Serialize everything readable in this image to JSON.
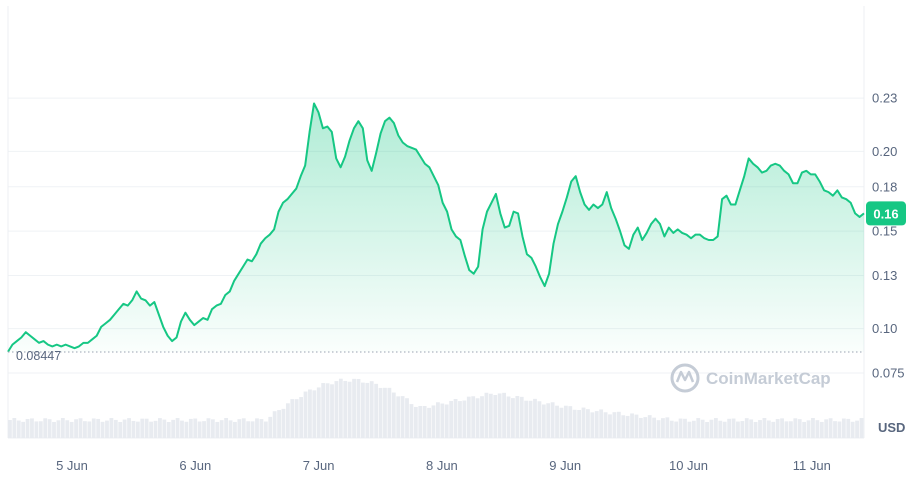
{
  "chart_data": {
    "type": "area",
    "currency_label": "USD",
    "watermark": "CoinMarketCap",
    "current_price_label": "0.16",
    "start_price_label": "0.08447",
    "x_tick_labels": [
      "5 Jun",
      "6 Jun",
      "7 Jun",
      "8 Jun",
      "9 Jun",
      "10 Jun",
      "11 Jun"
    ],
    "y_tick_labels": [
      "0.23",
      "0.20",
      "0.18",
      "0.15",
      "0.13",
      "0.10",
      "0.075"
    ],
    "y_tick_values": [
      0.23,
      0.2,
      0.18,
      0.155,
      0.13,
      0.1,
      0.075
    ],
    "ylim": [
      0.0705,
      0.2565
    ],
    "grid": true,
    "colors": {
      "line": "#16c784",
      "badge": "#16c784",
      "volume": "#e8ebf0",
      "grid": "#eff2f5",
      "text": "#58667e"
    },
    "series": [
      {
        "values": [
          0.087,
          0.091,
          0.093,
          0.095,
          0.098,
          0.096,
          0.094,
          0.092,
          0.093,
          0.091,
          0.09,
          0.091,
          0.09,
          0.091,
          0.09,
          0.089,
          0.09,
          0.092,
          0.092,
          0.094,
          0.096,
          0.101,
          0.103,
          0.105,
          0.108,
          0.111,
          0.114,
          0.113,
          0.116,
          0.121,
          0.117,
          0.116,
          0.113,
          0.115,
          0.108,
          0.101,
          0.096,
          0.093,
          0.095,
          0.104,
          0.109,
          0.105,
          0.102,
          0.104,
          0.106,
          0.105,
          0.111,
          0.113,
          0.114,
          0.119,
          0.121,
          0.127,
          0.131,
          0.135,
          0.139,
          0.138,
          0.142,
          0.148,
          0.151,
          0.153,
          0.156,
          0.166,
          0.171,
          0.173,
          0.176,
          0.179,
          0.186,
          0.192,
          0.211,
          0.227,
          0.222,
          0.213,
          0.214,
          0.211,
          0.196,
          0.191,
          0.197,
          0.206,
          0.213,
          0.217,
          0.213,
          0.195,
          0.189,
          0.199,
          0.21,
          0.217,
          0.219,
          0.216,
          0.209,
          0.205,
          0.203,
          0.202,
          0.201,
          0.197,
          0.193,
          0.191,
          0.186,
          0.181,
          0.171,
          0.166,
          0.156,
          0.152,
          0.15,
          0.141,
          0.133,
          0.131,
          0.135,
          0.156,
          0.166,
          0.171,
          0.176,
          0.165,
          0.157,
          0.158,
          0.166,
          0.165,
          0.152,
          0.142,
          0.14,
          0.135,
          0.129,
          0.124,
          0.131,
          0.148,
          0.159,
          0.166,
          0.174,
          0.183,
          0.186,
          0.177,
          0.17,
          0.167,
          0.17,
          0.168,
          0.17,
          0.177,
          0.168,
          0.162,
          0.155,
          0.147,
          0.145,
          0.153,
          0.157,
          0.15,
          0.154,
          0.159,
          0.162,
          0.159,
          0.152,
          0.157,
          0.154,
          0.156,
          0.154,
          0.153,
          0.151,
          0.153,
          0.153,
          0.151,
          0.15,
          0.15,
          0.152,
          0.173,
          0.175,
          0.17,
          0.17,
          0.178,
          0.186,
          0.196,
          0.193,
          0.191,
          0.188,
          0.189,
          0.192,
          0.193,
          0.192,
          0.189,
          0.187,
          0.182,
          0.182,
          0.188,
          0.189,
          0.187,
          0.187,
          0.183,
          0.178,
          0.177,
          0.175,
          0.178,
          0.174,
          0.173,
          0.171,
          0.165,
          0.163,
          0.165
        ]
      }
    ]
  }
}
